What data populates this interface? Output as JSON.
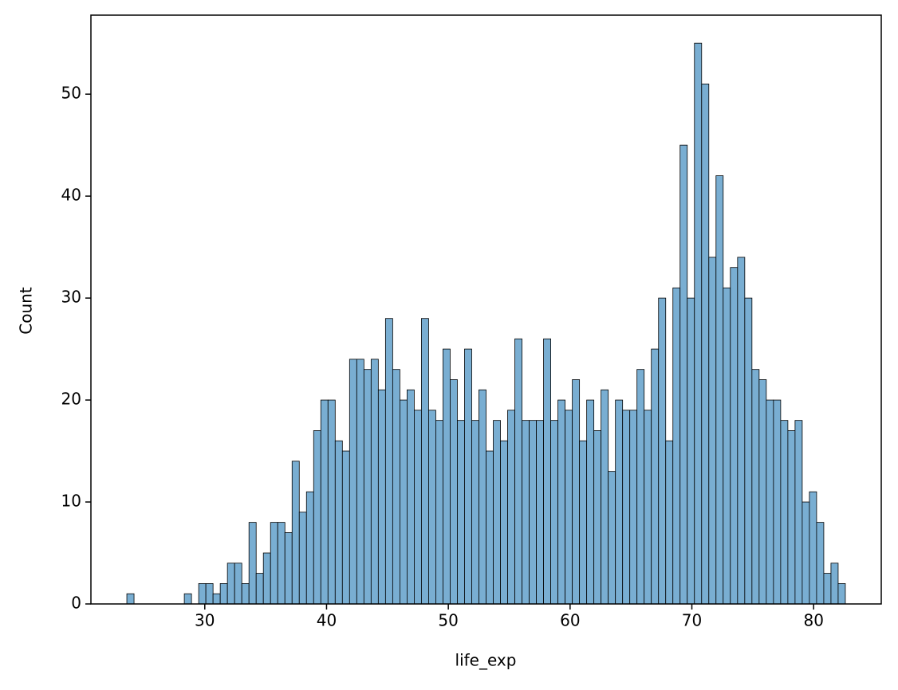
{
  "chart_data": {
    "type": "histogram",
    "xlabel": "life_exp",
    "ylabel": "Count",
    "color": "#79aed2",
    "edgecolor": "#000000",
    "bins": [
      23.599,
      24.189,
      24.779,
      25.369,
      25.959,
      26.549,
      27.139,
      27.729,
      28.319,
      28.909,
      29.499,
      30.089,
      30.679,
      31.269,
      31.859,
      32.45,
      33.04,
      33.63,
      34.22,
      34.81,
      35.4,
      35.99,
      36.58,
      37.17,
      37.76,
      38.35,
      38.94,
      39.53,
      40.12,
      40.71,
      41.3,
      41.89,
      42.48,
      43.07,
      43.66,
      44.25,
      44.84,
      45.43,
      46.021,
      46.611,
      47.201,
      47.791,
      48.381,
      48.971,
      49.561,
      50.151,
      50.741,
      51.331,
      51.921,
      52.511,
      53.101,
      53.691,
      54.281,
      54.871,
      55.461,
      56.051,
      56.641,
      57.231,
      57.821,
      58.411,
      59.001,
      59.592,
      60.182,
      60.772,
      61.362,
      61.952,
      62.542,
      63.132,
      63.722,
      64.312,
      64.902,
      65.492,
      66.082,
      66.672,
      67.262,
      67.852,
      68.442,
      69.032,
      69.622,
      70.212,
      70.802,
      71.392,
      71.982,
      72.572,
      73.162,
      73.753,
      74.343,
      74.933,
      75.523,
      76.113,
      76.703,
      77.293,
      77.883,
      78.473,
      79.063,
      79.653,
      80.243,
      80.833,
      81.423,
      82.013,
      82.603
    ],
    "values": [
      1,
      0,
      0,
      0,
      0,
      0,
      0,
      0,
      1,
      0,
      2,
      2,
      1,
      2,
      4,
      4,
      2,
      8,
      3,
      5,
      8,
      8,
      7,
      14,
      9,
      11,
      17,
      20,
      20,
      16,
      15,
      24,
      24,
      23,
      24,
      21,
      28,
      23,
      20,
      21,
      19,
      28,
      19,
      18,
      25,
      22,
      18,
      25,
      18,
      21,
      15,
      18,
      16,
      19,
      26,
      18,
      18,
      18,
      26,
      18,
      20,
      19,
      22,
      16,
      20,
      17,
      21,
      13,
      20,
      19,
      19,
      23,
      19,
      25,
      30,
      16,
      31,
      45,
      30,
      55,
      51,
      34,
      42,
      31,
      33,
      34,
      30,
      23,
      22,
      20,
      20,
      18,
      17,
      18,
      10,
      11,
      8,
      3,
      4,
      2
    ],
    "xlim": [
      20.649,
      85.553
    ],
    "ylim": [
      0,
      57.75
    ],
    "xticks": [
      30,
      40,
      50,
      60,
      70,
      80
    ],
    "yticks": [
      0,
      10,
      20,
      30,
      40,
      50
    ]
  }
}
